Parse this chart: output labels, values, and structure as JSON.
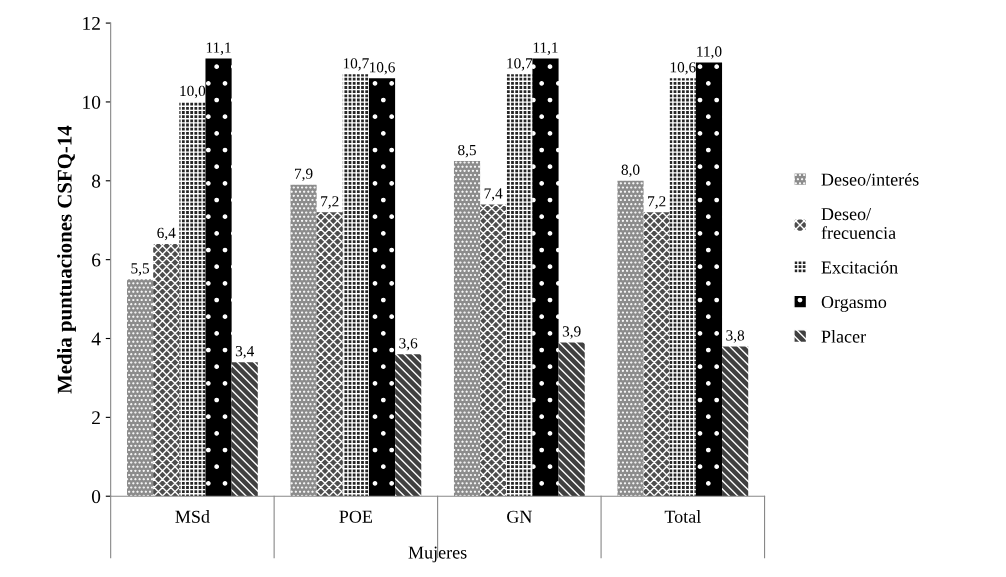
{
  "chart_data": {
    "type": "bar",
    "ylabel": "Media puntuaciones CSFQ-14",
    "xlabel": "Mujeres",
    "categories": [
      "MSd",
      "POE",
      "GN",
      "Total"
    ],
    "series": [
      {
        "name": "Deseo/interés",
        "color": "#8c8c8c",
        "values": [
          5.5,
          7.9,
          8.5,
          8.0
        ],
        "value_labels": [
          "5,5",
          "7,9",
          "8,5",
          "8,0"
        ]
      },
      {
        "name": "Deseo/\nfrecuencia",
        "color": "#4d4d4d",
        "values": [
          6.4,
          7.2,
          7.4,
          7.2
        ],
        "value_labels": [
          "6,4",
          "7,2",
          "7,4",
          "7,2"
        ]
      },
      {
        "name": "Excitación",
        "color": "#262626",
        "values": [
          10.0,
          10.7,
          10.7,
          10.6
        ],
        "value_labels": [
          "10,0",
          "10,7",
          "10,7",
          "10,6"
        ]
      },
      {
        "name": "Orgasmo",
        "color": "#000000",
        "values": [
          11.1,
          10.6,
          11.1,
          11.0
        ],
        "value_labels": [
          "11,1",
          "10,6",
          "11,1",
          "11,0"
        ]
      },
      {
        "name": "Placer",
        "color": "#404040",
        "values": [
          3.4,
          3.6,
          3.9,
          3.8
        ],
        "value_labels": [
          "3,4",
          "3,6",
          "3,9",
          "3,8"
        ]
      }
    ],
    "ylim": [
      0,
      12
    ],
    "yticks": [
      0,
      2,
      4,
      6,
      8,
      10,
      12
    ],
    "grid": false,
    "legend": "right"
  }
}
